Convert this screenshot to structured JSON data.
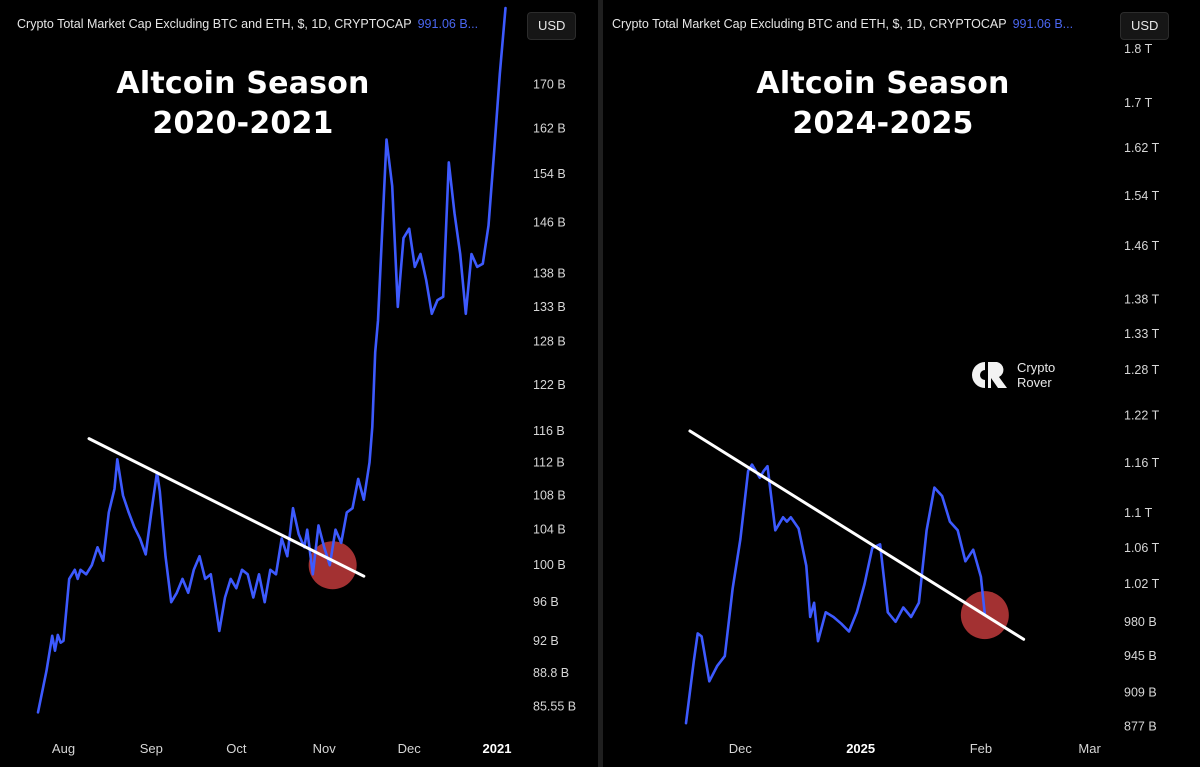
{
  "panels": [
    {
      "header_text": "Crypto Total Market Cap Excluding BTC and ETH, $, 1D, CRYPTOCAP",
      "header_value": "991.06 B...",
      "currency_button": "USD",
      "title_line1": "Altcoin Season",
      "title_line2": "2020-2021"
    },
    {
      "header_text": "Crypto Total Market Cap Excluding BTC and ETH, $, 1D, CRYPTOCAP",
      "header_value": "991.06 B...",
      "currency_button": "USD",
      "title_line1": "Altcoin Season",
      "title_line2": "2024-2025"
    }
  ],
  "logo": {
    "line1": "Crypto",
    "line2": "Rover"
  },
  "colors": {
    "line": "#3d5afe",
    "trendline": "#ffffff",
    "marker": "#c0393b",
    "background": "#000000"
  },
  "chart_data": [
    {
      "type": "line",
      "title": "Altcoin Season 2020-2021",
      "y_scale": "log",
      "ylim": [
        83,
        185
      ],
      "y_unit": "B",
      "y_ticks": [
        {
          "value": 170,
          "label": "170 B"
        },
        {
          "value": 162,
          "label": "162 B"
        },
        {
          "value": 154,
          "label": "154 B"
        },
        {
          "value": 146,
          "label": "146 B"
        },
        {
          "value": 138,
          "label": "138 B"
        },
        {
          "value": 133,
          "label": "133 B"
        },
        {
          "value": 128,
          "label": "128 B"
        },
        {
          "value": 122,
          "label": "122 B"
        },
        {
          "value": 116,
          "label": "116 B"
        },
        {
          "value": 112,
          "label": "112 B"
        },
        {
          "value": 108,
          "label": "108 B"
        },
        {
          "value": 104,
          "label": "104 B"
        },
        {
          "value": 100,
          "label": "100 B"
        },
        {
          "value": 96,
          "label": "96 B"
        },
        {
          "value": 92,
          "label": "92 B"
        },
        {
          "value": 88.8,
          "label": "88.8 B"
        },
        {
          "value": 85.55,
          "label": "85.55 B"
        }
      ],
      "x_ticks": [
        {
          "date": "2020-08-01",
          "label": "Aug",
          "bold": false
        },
        {
          "date": "2020-09-01",
          "label": "Sep",
          "bold": false
        },
        {
          "date": "2020-10-01",
          "label": "Oct",
          "bold": false
        },
        {
          "date": "2020-11-01",
          "label": "Nov",
          "bold": false
        },
        {
          "date": "2020-12-01",
          "label": "Dec",
          "bold": false
        },
        {
          "date": "2021-01-01",
          "label": "2021",
          "bold": true
        }
      ],
      "xlim": [
        "2020-07-23",
        "2021-01-07"
      ],
      "series": [
        {
          "values": [
            [
              "2020-07-23",
              85.0
            ],
            [
              "2020-07-26",
              89.0
            ],
            [
              "2020-07-28",
              92.5
            ],
            [
              "2020-07-29",
              91.0
            ],
            [
              "2020-07-30",
              92.6
            ],
            [
              "2020-07-31",
              91.8
            ],
            [
              "2020-08-01",
              92.0
            ],
            [
              "2020-08-03",
              98.5
            ],
            [
              "2020-08-05",
              99.5
            ],
            [
              "2020-08-06",
              98.5
            ],
            [
              "2020-08-07",
              99.5
            ],
            [
              "2020-08-09",
              99.0
            ],
            [
              "2020-08-11",
              100.0
            ],
            [
              "2020-08-13",
              102.0
            ],
            [
              "2020-08-15",
              100.5
            ],
            [
              "2020-08-17",
              106.0
            ],
            [
              "2020-08-19",
              108.8
            ],
            [
              "2020-08-20",
              112.4
            ],
            [
              "2020-08-22",
              108.0
            ],
            [
              "2020-08-24",
              106.0
            ],
            [
              "2020-08-26",
              104.3
            ],
            [
              "2020-08-28",
              103.0
            ],
            [
              "2020-08-30",
              101.2
            ],
            [
              "2020-09-01",
              106.0
            ],
            [
              "2020-09-03",
              110.8
            ],
            [
              "2020-09-04",
              108.5
            ],
            [
              "2020-09-06",
              101.0
            ],
            [
              "2020-09-08",
              96.0
            ],
            [
              "2020-09-10",
              97.0
            ],
            [
              "2020-09-12",
              98.5
            ],
            [
              "2020-09-14",
              97.0
            ],
            [
              "2020-09-16",
              99.5
            ],
            [
              "2020-09-18",
              101.0
            ],
            [
              "2020-09-20",
              98.5
            ],
            [
              "2020-09-22",
              99.0
            ],
            [
              "2020-09-24",
              95.0
            ],
            [
              "2020-09-25",
              93.0
            ],
            [
              "2020-09-27",
              96.5
            ],
            [
              "2020-09-29",
              98.5
            ],
            [
              "2020-10-01",
              97.5
            ],
            [
              "2020-10-03",
              99.5
            ],
            [
              "2020-10-05",
              99.0
            ],
            [
              "2020-10-07",
              96.5
            ],
            [
              "2020-10-09",
              99.0
            ],
            [
              "2020-10-11",
              96.0
            ],
            [
              "2020-10-13",
              99.5
            ],
            [
              "2020-10-15",
              99.0
            ],
            [
              "2020-10-17",
              103.0
            ],
            [
              "2020-10-19",
              101.0
            ],
            [
              "2020-10-21",
              106.5
            ],
            [
              "2020-10-23",
              103.5
            ],
            [
              "2020-10-25",
              102.0
            ],
            [
              "2020-10-26",
              104.0
            ],
            [
              "2020-10-28",
              99.0
            ],
            [
              "2020-10-30",
              104.5
            ],
            [
              "2020-11-01",
              102.0
            ],
            [
              "2020-11-03",
              100.0
            ],
            [
              "2020-11-05",
              104.0
            ],
            [
              "2020-11-07",
              102.5
            ],
            [
              "2020-11-09",
              106.0
            ],
            [
              "2020-11-11",
              106.5
            ],
            [
              "2020-11-13",
              110.0
            ],
            [
              "2020-11-15",
              107.5
            ],
            [
              "2020-11-17",
              112.0
            ],
            [
              "2020-11-18",
              116.5
            ],
            [
              "2020-11-19",
              126.5
            ],
            [
              "2020-11-20",
              131.0
            ],
            [
              "2020-11-21",
              140.0
            ],
            [
              "2020-11-23",
              160.0
            ],
            [
              "2020-11-25",
              152.0
            ],
            [
              "2020-11-27",
              133.0
            ],
            [
              "2020-11-29",
              143.5
            ],
            [
              "2020-12-01",
              145.0
            ],
            [
              "2020-12-03",
              139.0
            ],
            [
              "2020-12-05",
              141.0
            ],
            [
              "2020-12-07",
              137.0
            ],
            [
              "2020-12-09",
              132.0
            ],
            [
              "2020-12-11",
              134.0
            ],
            [
              "2020-12-13",
              134.5
            ],
            [
              "2020-12-15",
              156.0
            ],
            [
              "2020-12-17",
              147.5
            ],
            [
              "2020-12-19",
              141.0
            ],
            [
              "2020-12-21",
              132.0
            ],
            [
              "2020-12-23",
              141.0
            ],
            [
              "2020-12-25",
              139.0
            ],
            [
              "2020-12-27",
              139.5
            ],
            [
              "2020-12-29",
              145.5
            ],
            [
              "2020-12-31",
              158.0
            ],
            [
              "2021-01-02",
              172.0
            ],
            [
              "2021-01-04",
              185.0
            ]
          ]
        }
      ],
      "trendline": {
        "from": [
          "2020-08-10",
          115.0
        ],
        "to": [
          "2020-11-15",
          98.8
        ]
      },
      "highlight": {
        "date": "2020-11-04",
        "value": 100.0
      }
    },
    {
      "type": "line",
      "title": "Altcoin Season 2024-2025",
      "y_scale": "log",
      "ylim": [
        870,
        1880
      ],
      "y_unit": "B",
      "y_ticks": [
        {
          "value": 1800,
          "label": "1.8 T"
        },
        {
          "value": 1700,
          "label": "1.7 T"
        },
        {
          "value": 1620,
          "label": "1.62 T"
        },
        {
          "value": 1540,
          "label": "1.54 T"
        },
        {
          "value": 1460,
          "label": "1.46 T"
        },
        {
          "value": 1380,
          "label": "1.38 T"
        },
        {
          "value": 1330,
          "label": "1.33 T"
        },
        {
          "value": 1280,
          "label": "1.28 T"
        },
        {
          "value": 1220,
          "label": "1.22 T"
        },
        {
          "value": 1160,
          "label": "1.16 T"
        },
        {
          "value": 1100,
          "label": "1.1 T"
        },
        {
          "value": 1060,
          "label": "1.06 T"
        },
        {
          "value": 1020,
          "label": "1.02 T"
        },
        {
          "value": 980,
          "label": "980 B"
        },
        {
          "value": 945,
          "label": "945 B"
        },
        {
          "value": 909,
          "label": "909 B"
        },
        {
          "value": 877,
          "label": "877 B"
        }
      ],
      "x_ticks": [
        {
          "date": "2024-12-01",
          "label": "Dec",
          "bold": false
        },
        {
          "date": "2025-01-01",
          "label": "2025",
          "bold": true
        },
        {
          "date": "2025-02-01",
          "label": "Feb",
          "bold": false
        },
        {
          "date": "2025-03-01",
          "label": "Mar",
          "bold": false
        }
      ],
      "xlim": [
        "2024-11-09",
        "2025-03-06"
      ],
      "series": [
        {
          "values": [
            [
              "2024-11-17",
              880
            ],
            [
              "2024-11-19",
              940
            ],
            [
              "2024-11-20",
              968
            ],
            [
              "2024-11-21",
              965
            ],
            [
              "2024-11-23",
              920
            ],
            [
              "2024-11-25",
              935
            ],
            [
              "2024-11-27",
              945
            ],
            [
              "2024-11-29",
              1015
            ],
            [
              "2024-12-01",
              1070
            ],
            [
              "2024-12-03",
              1150
            ],
            [
              "2024-12-04",
              1158
            ],
            [
              "2024-12-06",
              1142
            ],
            [
              "2024-12-07",
              1150
            ],
            [
              "2024-12-08",
              1156
            ],
            [
              "2024-12-10",
              1080
            ],
            [
              "2024-12-12",
              1095
            ],
            [
              "2024-12-13",
              1090
            ],
            [
              "2024-12-14",
              1095
            ],
            [
              "2024-12-16",
              1082
            ],
            [
              "2024-12-18",
              1040
            ],
            [
              "2024-12-19",
              985
            ],
            [
              "2024-12-20",
              1000
            ],
            [
              "2024-12-21",
              960
            ],
            [
              "2024-12-23",
              990
            ],
            [
              "2024-12-25",
              985
            ],
            [
              "2024-12-27",
              978
            ],
            [
              "2024-12-29",
              970
            ],
            [
              "2024-12-31",
              990
            ],
            [
              "2025-01-02",
              1020
            ],
            [
              "2025-01-04",
              1060
            ],
            [
              "2025-01-06",
              1064
            ],
            [
              "2025-01-08",
              990
            ],
            [
              "2025-01-10",
              980
            ],
            [
              "2025-01-12",
              995
            ],
            [
              "2025-01-14",
              985
            ],
            [
              "2025-01-16",
              1000
            ],
            [
              "2025-01-18",
              1080
            ],
            [
              "2025-01-20",
              1130
            ],
            [
              "2025-01-22",
              1120
            ],
            [
              "2025-01-24",
              1090
            ],
            [
              "2025-01-26",
              1080
            ],
            [
              "2025-01-28",
              1045
            ],
            [
              "2025-01-30",
              1058
            ],
            [
              "2025-02-01",
              1028
            ],
            [
              "2025-02-02",
              988
            ]
          ]
        }
      ],
      "trendline": {
        "from": [
          "2024-11-18",
          1200
        ],
        "to": [
          "2025-02-12",
          962
        ]
      },
      "highlight": {
        "date": "2025-02-02",
        "value": 987
      }
    }
  ]
}
